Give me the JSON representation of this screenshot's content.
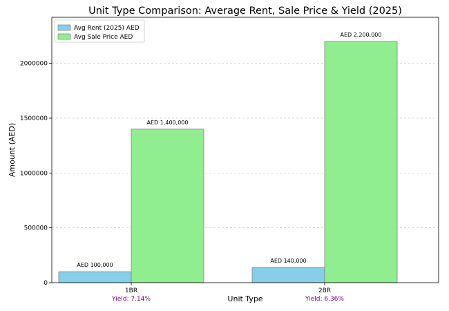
{
  "chart_data": {
    "type": "bar",
    "title": "Unit Type Comparison: Average Rent, Sale Price & Yield (2025)",
    "xlabel": "Unit Type",
    "ylabel": "Amount (AED)",
    "categories": [
      "1BR",
      "2BR"
    ],
    "series": [
      {
        "name": "Avg Rent (2025) AED",
        "values": [
          100000,
          140000
        ],
        "labels": [
          "AED 100,000",
          "AED 140,000"
        ],
        "color": "#87ceeb"
      },
      {
        "name": "Avg Sale Price AED",
        "values": [
          1400000,
          2200000
        ],
        "labels": [
          "AED 1,400,000",
          "AED 2,200,000"
        ],
        "color": "#90ee90"
      }
    ],
    "yields": [
      "Yield: 7.14%",
      "Yield: 6.36%"
    ],
    "ylim": [
      0,
      2420000
    ],
    "yticks": [
      0,
      500000,
      1000000,
      1500000,
      2000000
    ],
    "ytick_labels": [
      "0",
      "500000",
      "1000000",
      "1500000",
      "2000000"
    ],
    "grid": "y-dashed",
    "legend_position": "upper-left",
    "colors": {
      "yield_text": "#800080",
      "bar_edge": "#808080",
      "grid": "#cccccc"
    }
  }
}
